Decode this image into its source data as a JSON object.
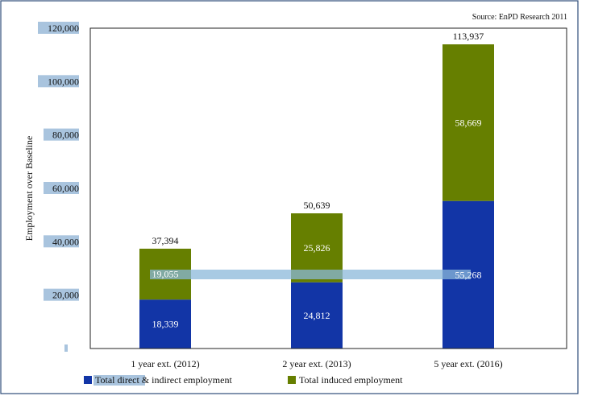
{
  "source_note": "Source: EnPD Research 2011",
  "chart_data": {
    "type": "bar",
    "stacked": true,
    "categories": [
      "1 year ext. (2012)",
      "2 year ext. (2013)",
      "5 year ext. (2016)"
    ],
    "series": [
      {
        "name": "Total direct & indirect employment",
        "values": [
          18339,
          24812,
          55268
        ],
        "labels": [
          "18,339",
          "24,812",
          "55,268"
        ],
        "color": "#1235A6"
      },
      {
        "name": "Total induced employment",
        "values": [
          19055,
          25826,
          58669
        ],
        "labels": [
          "19,055",
          "25,826",
          "58,669"
        ],
        "color": "#667F00"
      }
    ],
    "totals": [
      37394,
      50639,
      113937
    ],
    "total_labels": [
      "37,394",
      "50,639",
      "113,937"
    ],
    "ylabel": "Employment over Baseline",
    "xlabel": "",
    "ylim": [
      0,
      120000
    ],
    "ytick_labels": [
      "",
      "20,000",
      "40,000",
      "60,000",
      "80,000",
      "100,000",
      "120,000"
    ],
    "grid": false,
    "legend_position": "bottom"
  },
  "colors": {
    "tick_label_bg": "#A9C4DE",
    "highlight_band": "#8BB8DA",
    "frame_border": "#2F4E7A",
    "axis_line": "#222222"
  }
}
